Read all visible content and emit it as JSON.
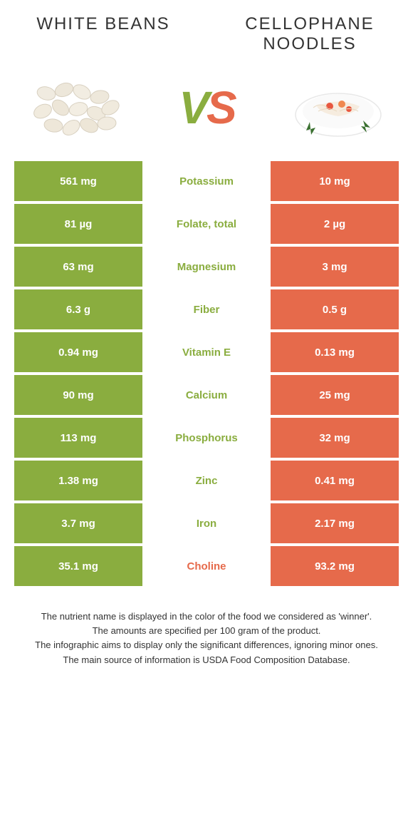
{
  "colors": {
    "green": "#8aad3f",
    "orange": "#e66a4b",
    "text": "#333333"
  },
  "header": {
    "left_title": "White Beans",
    "right_title": "Cellophane Noodles"
  },
  "vs": {
    "v": "V",
    "s": "S"
  },
  "rows": [
    {
      "nutrient": "Potassium",
      "left": "561 mg",
      "right": "10 mg",
      "winner": "left"
    },
    {
      "nutrient": "Folate, total",
      "left": "81 µg",
      "right": "2 µg",
      "winner": "left"
    },
    {
      "nutrient": "Magnesium",
      "left": "63 mg",
      "right": "3 mg",
      "winner": "left"
    },
    {
      "nutrient": "Fiber",
      "left": "6.3 g",
      "right": "0.5 g",
      "winner": "left"
    },
    {
      "nutrient": "Vitamin E",
      "left": "0.94 mg",
      "right": "0.13 mg",
      "winner": "left"
    },
    {
      "nutrient": "Calcium",
      "left": "90 mg",
      "right": "25 mg",
      "winner": "left"
    },
    {
      "nutrient": "Phosphorus",
      "left": "113 mg",
      "right": "32 mg",
      "winner": "left"
    },
    {
      "nutrient": "Zinc",
      "left": "1.38 mg",
      "right": "0.41 mg",
      "winner": "left"
    },
    {
      "nutrient": "Iron",
      "left": "3.7 mg",
      "right": "2.17 mg",
      "winner": "left"
    },
    {
      "nutrient": "Choline",
      "left": "35.1 mg",
      "right": "93.2 mg",
      "winner": "right"
    }
  ],
  "footnotes": [
    "The nutrient name is displayed in the color of the food we considered as 'winner'.",
    "The amounts are specified per 100 gram of the product.",
    "The infographic aims to display only the significant differences, ignoring minor ones.",
    "The main source of information is USDA Food Composition Database."
  ]
}
